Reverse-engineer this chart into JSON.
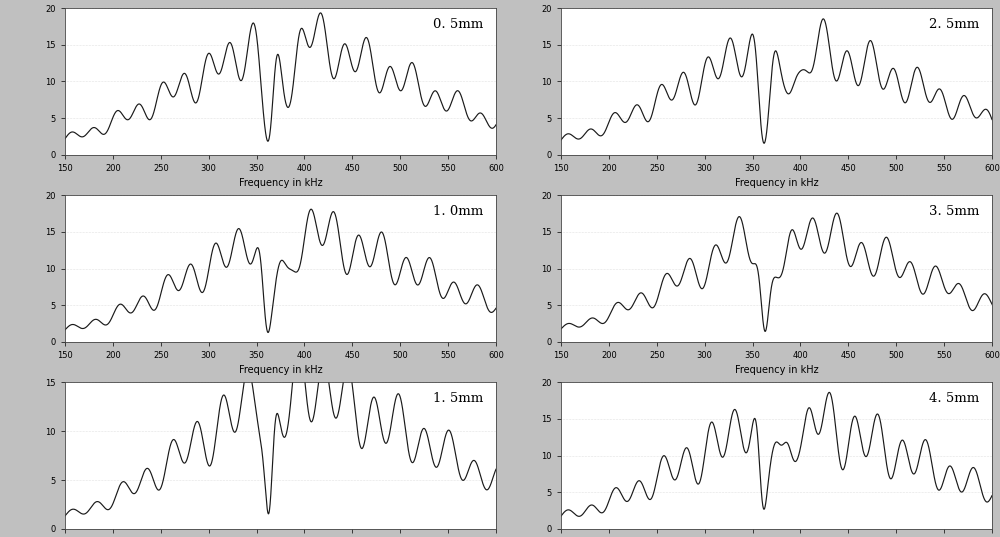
{
  "subplots": [
    {
      "label": "0. 5mm",
      "ylim": [
        0,
        20
      ],
      "yticks": [
        0,
        5,
        10,
        15,
        20
      ]
    },
    {
      "label": "2. 5mm",
      "ylim": [
        0,
        20
      ],
      "yticks": [
        0,
        5,
        10,
        15,
        20
      ]
    },
    {
      "label": "1. 0mm",
      "ylim": [
        0,
        20
      ],
      "yticks": [
        0,
        5,
        10,
        15,
        20
      ]
    },
    {
      "label": "3. 5mm",
      "ylim": [
        0,
        20
      ],
      "yticks": [
        0,
        5,
        10,
        15,
        20
      ]
    },
    {
      "label": "1. 5mm",
      "ylim": [
        0,
        15
      ],
      "yticks": [
        0,
        5,
        10,
        15
      ]
    },
    {
      "label": "4. 5mm",
      "ylim": [
        0,
        20
      ],
      "yticks": [
        0,
        5,
        10,
        15,
        20
      ]
    }
  ],
  "xlim": [
    150,
    600
  ],
  "xticks": [
    150,
    200,
    250,
    300,
    350,
    400,
    450,
    500,
    550,
    600
  ],
  "xlabel": "Frequency in kHz",
  "bg_color": "#c0c0c0",
  "line_color": "#1a1a1a",
  "axes_bg": "#ffffff"
}
